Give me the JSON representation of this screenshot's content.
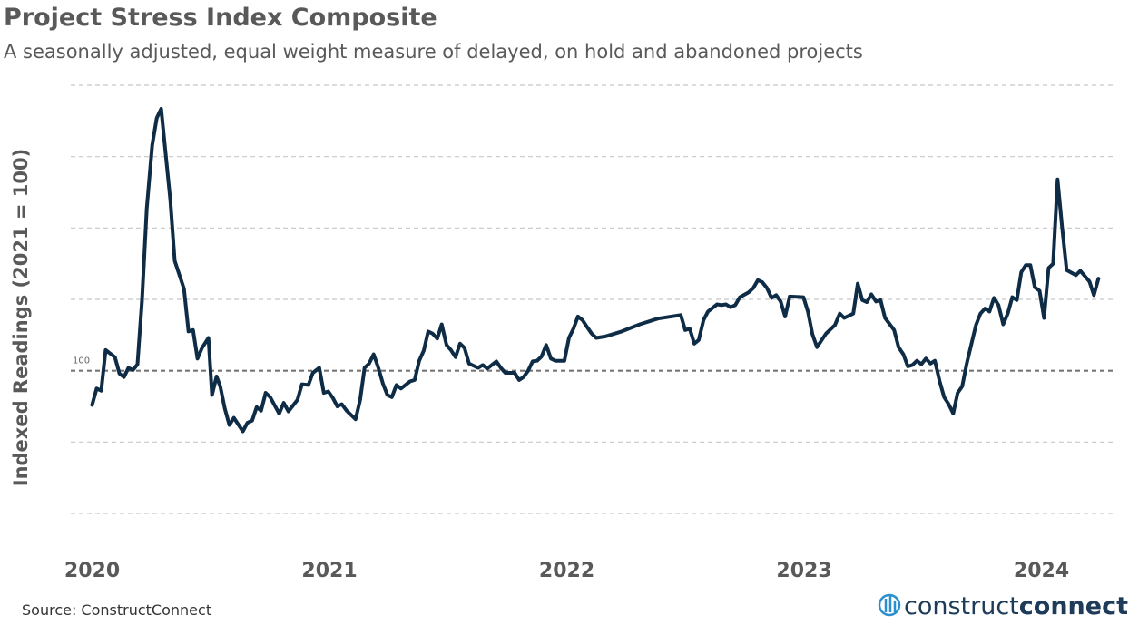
{
  "chart_data": {
    "type": "line",
    "title": "Project Stress Index Composite",
    "subtitle": "A seasonally adjusted, equal weight measure of delayed, on hold and abandoned projects",
    "y_label": "Indexed Readings (2021 = 100)",
    "source": "Source: ConstructConnect",
    "logo": {
      "light": "construct",
      "bold": "connect"
    },
    "color": "#0e2c45",
    "xlim": [
      2019.91,
      2024.3
    ],
    "xticks": [
      2020,
      2021,
      2022,
      2023,
      2024
    ],
    "ylim": [
      80,
      140
    ],
    "yticks": [
      100
    ],
    "grid_lines": [
      80,
      90,
      100,
      110,
      120,
      130,
      140
    ],
    "x": [
      2020.0,
      2020.019,
      2020.038,
      2020.057,
      2020.096,
      2020.115,
      2020.134,
      2020.153,
      2020.172,
      2020.191,
      2020.21,
      2020.23,
      2020.253,
      2020.272,
      2020.291,
      2020.31,
      2020.329,
      2020.348,
      2020.387,
      2020.406,
      2020.425,
      2020.444,
      2020.463,
      2020.49,
      2020.505,
      2020.524,
      2020.54,
      2020.559,
      2020.578,
      2020.597,
      2020.635,
      2020.654,
      2020.674,
      2020.693,
      2020.712,
      2020.731,
      2020.75,
      2020.788,
      2020.807,
      2020.827,
      2020.865,
      2020.884,
      2020.911,
      2020.93,
      2020.957,
      2020.976,
      2020.995,
      2021.014,
      2021.033,
      2021.052,
      2021.072,
      2021.11,
      2021.129,
      2021.148,
      2021.167,
      2021.186,
      2021.206,
      2021.225,
      2021.244,
      2021.263,
      2021.282,
      2021.301,
      2021.339,
      2021.359,
      2021.378,
      2021.397,
      2021.416,
      2021.435,
      2021.454,
      2021.473,
      2021.493,
      2021.512,
      2021.531,
      2021.55,
      2021.569,
      2021.588,
      2021.626,
      2021.646,
      2021.665,
      2021.703,
      2021.722,
      2021.741,
      2021.78,
      2021.799,
      2021.818,
      2021.837,
      2021.856,
      2021.875,
      2021.894,
      2021.913,
      2021.933,
      2021.952,
      2021.99,
      2022.009,
      2022.028,
      2022.047,
      2022.066,
      2022.086,
      2022.105,
      2022.124,
      2022.162,
      2022.231,
      2022.308,
      2022.384,
      2022.48,
      2022.499,
      2022.518,
      2022.537,
      2022.556,
      2022.576,
      2022.595,
      2022.633,
      2022.652,
      2022.671,
      2022.69,
      2022.71,
      2022.729,
      2022.767,
      2022.786,
      2022.805,
      2022.824,
      2022.843,
      2022.863,
      2022.882,
      2022.901,
      2022.92,
      2022.939,
      2022.997,
      2023.016,
      2023.035,
      2023.054,
      2023.092,
      2023.13,
      2023.15,
      2023.169,
      2023.207,
      2023.226,
      2023.245,
      2023.264,
      2023.283,
      2023.303,
      2023.322,
      2023.341,
      2023.379,
      2023.398,
      2023.418,
      2023.437,
      2023.456,
      2023.475,
      2023.494,
      2023.513,
      2023.532,
      2023.551,
      2023.571,
      2023.59,
      2023.609,
      2023.628,
      2023.647,
      2023.666,
      2023.685,
      2023.704,
      2023.724,
      2023.743,
      2023.762,
      2023.781,
      2023.8,
      2023.819,
      2023.839,
      2023.858,
      2023.877,
      2023.896,
      2023.915,
      2023.934,
      2023.953,
      2023.972,
      2023.992,
      2024.011,
      2024.03,
      2024.049,
      2024.068,
      2024.087,
      2024.106,
      2024.145,
      2024.164,
      2024.202,
      2024.221,
      2024.24
    ],
    "values": [
      95.2,
      97.5,
      97.2,
      102.9,
      101.9,
      99.6,
      99.1,
      100.4,
      100.1,
      100.9,
      109.9,
      122.7,
      131.6,
      135.4,
      136.7,
      130.3,
      124.0,
      115.4,
      111.5,
      105.5,
      105.7,
      101.7,
      103.2,
      104.6,
      96.6,
      99.2,
      97.8,
      94.7,
      92.4,
      93.4,
      91.5,
      92.7,
      93.0,
      94.9,
      94.4,
      96.9,
      96.3,
      94.0,
      95.5,
      94.3,
      95.9,
      98.1,
      98.0,
      99.7,
      100.4,
      96.9,
      97.1,
      96.2,
      95.0,
      95.3,
      94.4,
      93.2,
      95.9,
      100.4,
      101.0,
      102.3,
      100.4,
      98.2,
      96.6,
      96.3,
      98.0,
      97.5,
      98.5,
      98.7,
      101.4,
      102.8,
      105.5,
      105.2,
      104.5,
      106.5,
      103.6,
      102.9,
      101.9,
      103.8,
      103.2,
      101.0,
      100.4,
      100.8,
      100.3,
      101.3,
      100.4,
      99.7,
      99.7,
      98.7,
      99.1,
      100.0,
      101.3,
      101.4,
      102.0,
      103.6,
      101.7,
      101.4,
      101.4,
      104.6,
      105.9,
      107.6,
      107.1,
      106.1,
      105.2,
      104.6,
      104.8,
      105.5,
      106.5,
      107.3,
      107.8,
      105.7,
      105.9,
      103.8,
      104.3,
      107.1,
      108.3,
      109.3,
      109.2,
      109.3,
      108.9,
      109.2,
      110.3,
      111.0,
      111.6,
      112.7,
      112.4,
      111.6,
      110.2,
      110.6,
      109.7,
      107.6,
      110.4,
      110.3,
      108.3,
      105.1,
      103.3,
      105.2,
      106.4,
      108.0,
      107.4,
      108.0,
      112.2,
      109.9,
      109.6,
      110.7,
      109.7,
      109.9,
      107.4,
      105.7,
      103.3,
      102.3,
      100.6,
      100.8,
      101.4,
      100.9,
      101.7,
      101.0,
      101.4,
      98.5,
      96.3,
      95.3,
      94.0,
      96.9,
      97.8,
      101.0,
      103.6,
      106.4,
      108.0,
      108.7,
      108.3,
      110.2,
      109.2,
      106.5,
      108.0,
      110.3,
      109.9,
      113.8,
      114.8,
      114.8,
      111.7,
      111.2,
      107.4,
      114.4,
      115.0,
      126.8,
      120.1,
      114.1,
      113.4,
      114.0,
      112.5,
      110.6,
      112.9
    ]
  }
}
